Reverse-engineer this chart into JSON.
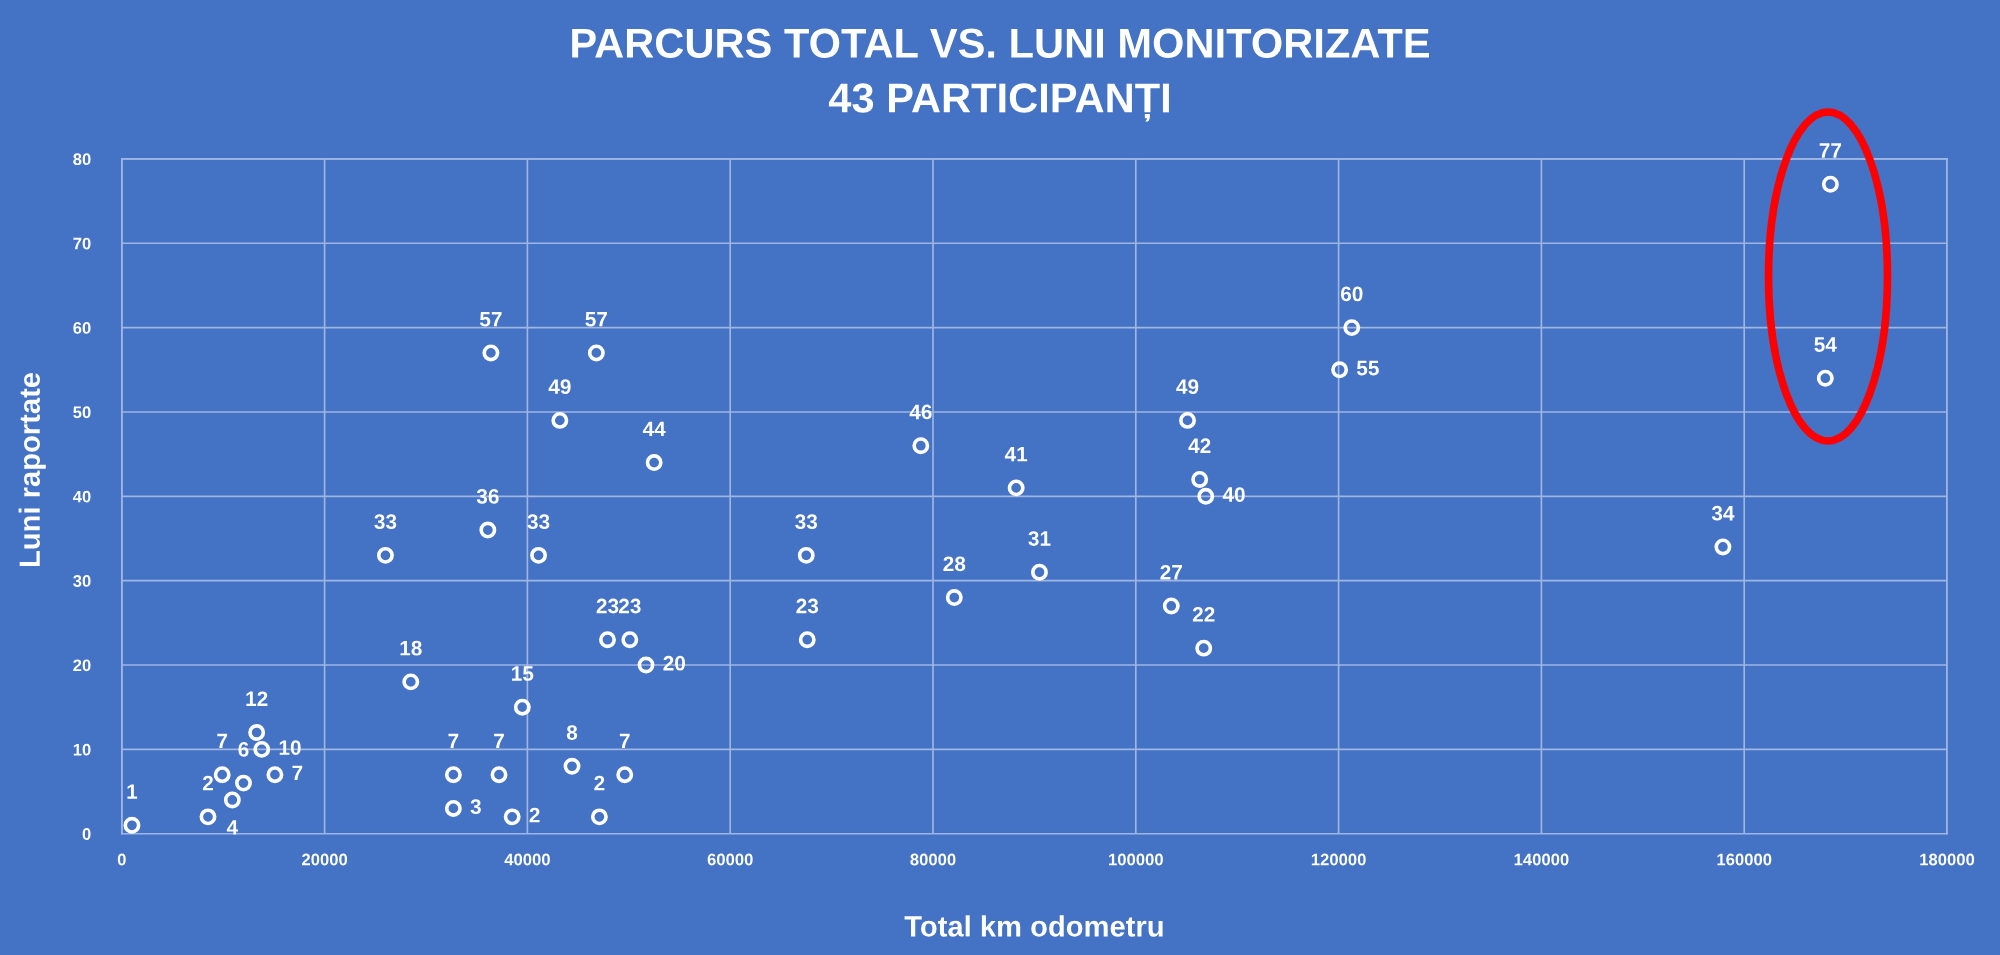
{
  "chart_data": {
    "type": "scatter",
    "title": "PARCURS TOTAL VS. LUNI MONITORIZATE",
    "subtitle": "43 PARTICIPANȚI",
    "xlabel": "Total km odometru",
    "ylabel": "Luni raportate",
    "x": [
      1000,
      8500,
      9900,
      10900,
      12000,
      13300,
      13800,
      15100,
      26000,
      28500,
      32700,
      32700,
      36100,
      36400,
      37200,
      38500,
      39500,
      41100,
      43200,
      44400,
      46800,
      47100,
      47900,
      49600,
      50100,
      51700,
      52500,
      67500,
      67600,
      78800,
      82100,
      88200,
      90500,
      103500,
      105100,
      106300,
      106700,
      106900,
      120100,
      121300,
      157900,
      168000,
      168500
    ],
    "values": [
      1,
      2,
      7,
      4,
      6,
      12,
      10,
      7,
      33,
      18,
      3,
      7,
      36,
      57,
      7,
      2,
      15,
      33,
      49,
      8,
      57,
      2,
      23,
      7,
      23,
      20,
      44,
      33,
      23,
      46,
      28,
      41,
      31,
      27,
      49,
      42,
      22,
      40,
      55,
      60,
      34,
      54,
      77
    ],
    "color": "#ffffff",
    "marker": "circle",
    "data_labels": true,
    "grid": true,
    "xlim": [
      0,
      180000
    ],
    "ylim": [
      0,
      80
    ],
    "xticks": [
      0,
      20000,
      40000,
      60000,
      80000,
      100000,
      120000,
      140000,
      160000,
      180000
    ],
    "yticks": [
      0,
      10,
      20,
      30,
      40,
      50,
      60,
      70,
      80
    ]
  }
}
